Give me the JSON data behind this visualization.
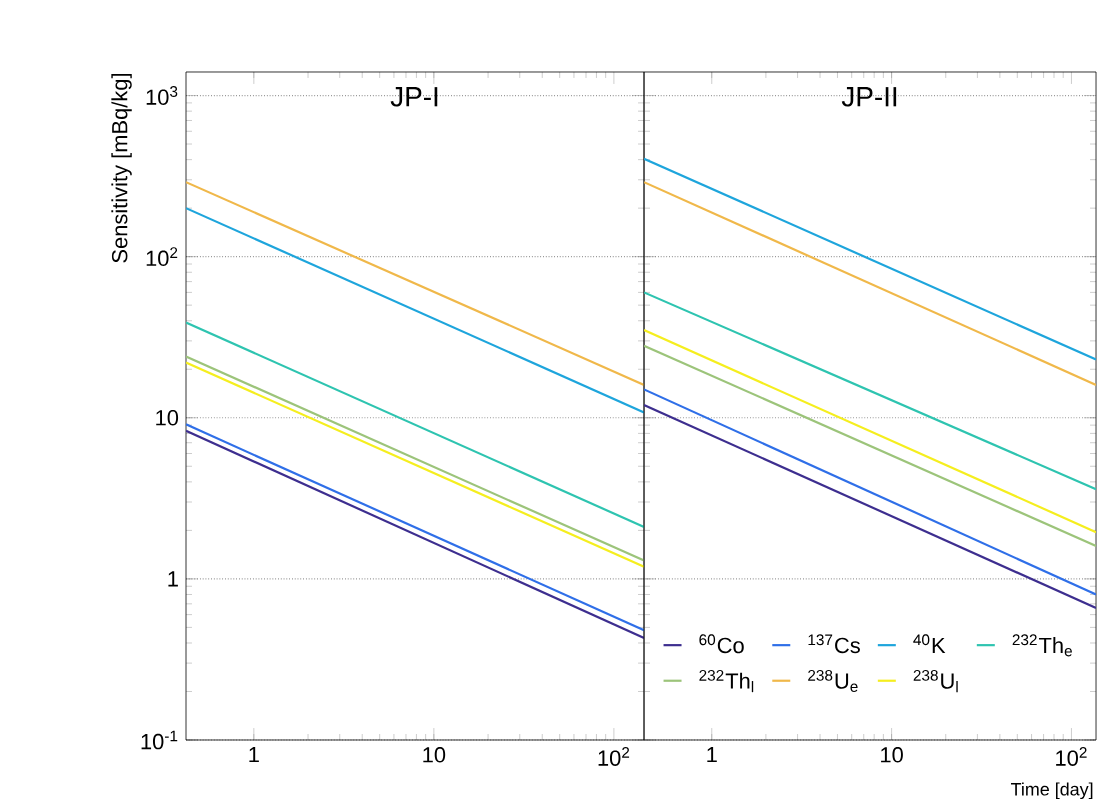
{
  "chart_data": [
    {
      "type": "line",
      "title": "JP-I",
      "ylabel": "Sensitivity [mBq/kg]",
      "log": "xy",
      "grid": "y",
      "line_style": "solid",
      "marker": "none",
      "xlim": [
        0.42,
        147
      ],
      "ylim": [
        0.1,
        1400
      ],
      "xticks": [
        1,
        10,
        {
          "value": 100,
          "label": "10$^{2}$"
        }
      ],
      "yticks": [
        {
          "value": 0.1,
          "label": "10$^{-1}$"
        },
        1,
        10,
        {
          "value": 100,
          "label": "10$^{2}$"
        },
        {
          "value": 1000,
          "label": "10$^{3}$"
        }
      ],
      "series": [
        {
          "color": "#3d2e8f",
          "x": [
            0.42,
            147
          ],
          "values": [
            8.3,
            0.43
          ]
        },
        {
          "color": "#2f6fe8",
          "x": [
            0.42,
            147
          ],
          "values": [
            9.1,
            0.48
          ]
        },
        {
          "color": "#1ea5dc",
          "x": [
            0.42,
            147
          ],
          "values": [
            200,
            10.8
          ]
        },
        {
          "color": "#2ec4b0",
          "x": [
            0.42,
            147
          ],
          "values": [
            39,
            2.1
          ]
        },
        {
          "color": "#9cc47a",
          "x": [
            0.42,
            147
          ],
          "values": [
            24,
            1.3
          ]
        },
        {
          "color": "#f0b84a",
          "x": [
            0.42,
            147
          ],
          "values": [
            290,
            16
          ]
        },
        {
          "color": "#f5ee1e",
          "x": [
            0.42,
            147
          ],
          "values": [
            22,
            1.19
          ]
        }
      ]
    },
    {
      "type": "line",
      "title": "JP-II",
      "xlabel": "Time [day]",
      "log": "xy",
      "grid": "y",
      "line_style": "solid",
      "marker": "none",
      "legend": "bottom",
      "tick_labels": "x",
      "xlim": [
        0.42,
        137
      ],
      "ylim": [
        0.1,
        1400
      ],
      "xticks": [
        1,
        10,
        {
          "value": 100,
          "label": "10$^{2}$"
        }
      ],
      "yticks": [
        0.1,
        1,
        10,
        100,
        1000
      ],
      "series": [
        {
          "name": "$^{60}$Co",
          "color": "#3d2e8f",
          "x": [
            0.42,
            137
          ],
          "values": [
            12,
            0.66
          ]
        },
        {
          "name": "$^{137}$Cs",
          "color": "#2f6fe8",
          "x": [
            0.42,
            137
          ],
          "values": [
            15,
            0.8
          ]
        },
        {
          "name": "$^{40}$K",
          "color": "#1ea5dc",
          "x": [
            0.42,
            137
          ],
          "values": [
            405,
            23
          ]
        },
        {
          "name": "$^{232}$Th$_{e}$",
          "color": "#2ec4b0",
          "x": [
            0.42,
            137
          ],
          "values": [
            60,
            3.6
          ]
        },
        {
          "name": "$^{232}$Th$_{l}$",
          "color": "#9cc47a",
          "x": [
            0.42,
            137
          ],
          "values": [
            28,
            1.6
          ]
        },
        {
          "name": "$^{238}$U$_{e}$",
          "color": "#f0b84a",
          "x": [
            0.42,
            137
          ],
          "values": [
            290,
            16
          ]
        },
        {
          "name": "$^{238}$U$_{l}$",
          "color": "#f5ee1e",
          "x": [
            0.42,
            137
          ],
          "values": [
            35,
            1.95
          ]
        }
      ]
    }
  ]
}
